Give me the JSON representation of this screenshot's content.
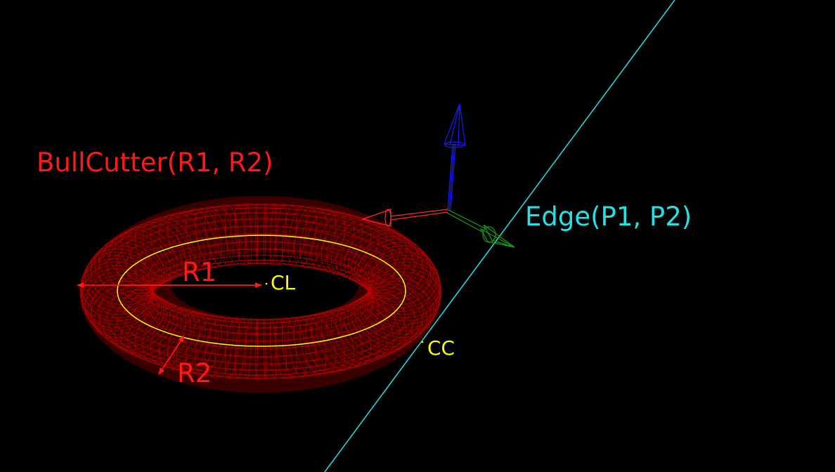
{
  "labels": {
    "cutter": "BullCutter(R1, R2)",
    "edge": "Edge(P1, P2)",
    "r1": "R1",
    "r2": "R2",
    "cl": "CL",
    "cc": "CC"
  },
  "colors": {
    "background": "#000000",
    "cutter": "#ff1a1a",
    "cutter_mesh": "#c40000",
    "edge": "#25e0e6",
    "points": "#ffff00",
    "axis_x": "#ff2a2a",
    "axis_y": "#12a012",
    "axis_z": "#1a1aff"
  }
}
